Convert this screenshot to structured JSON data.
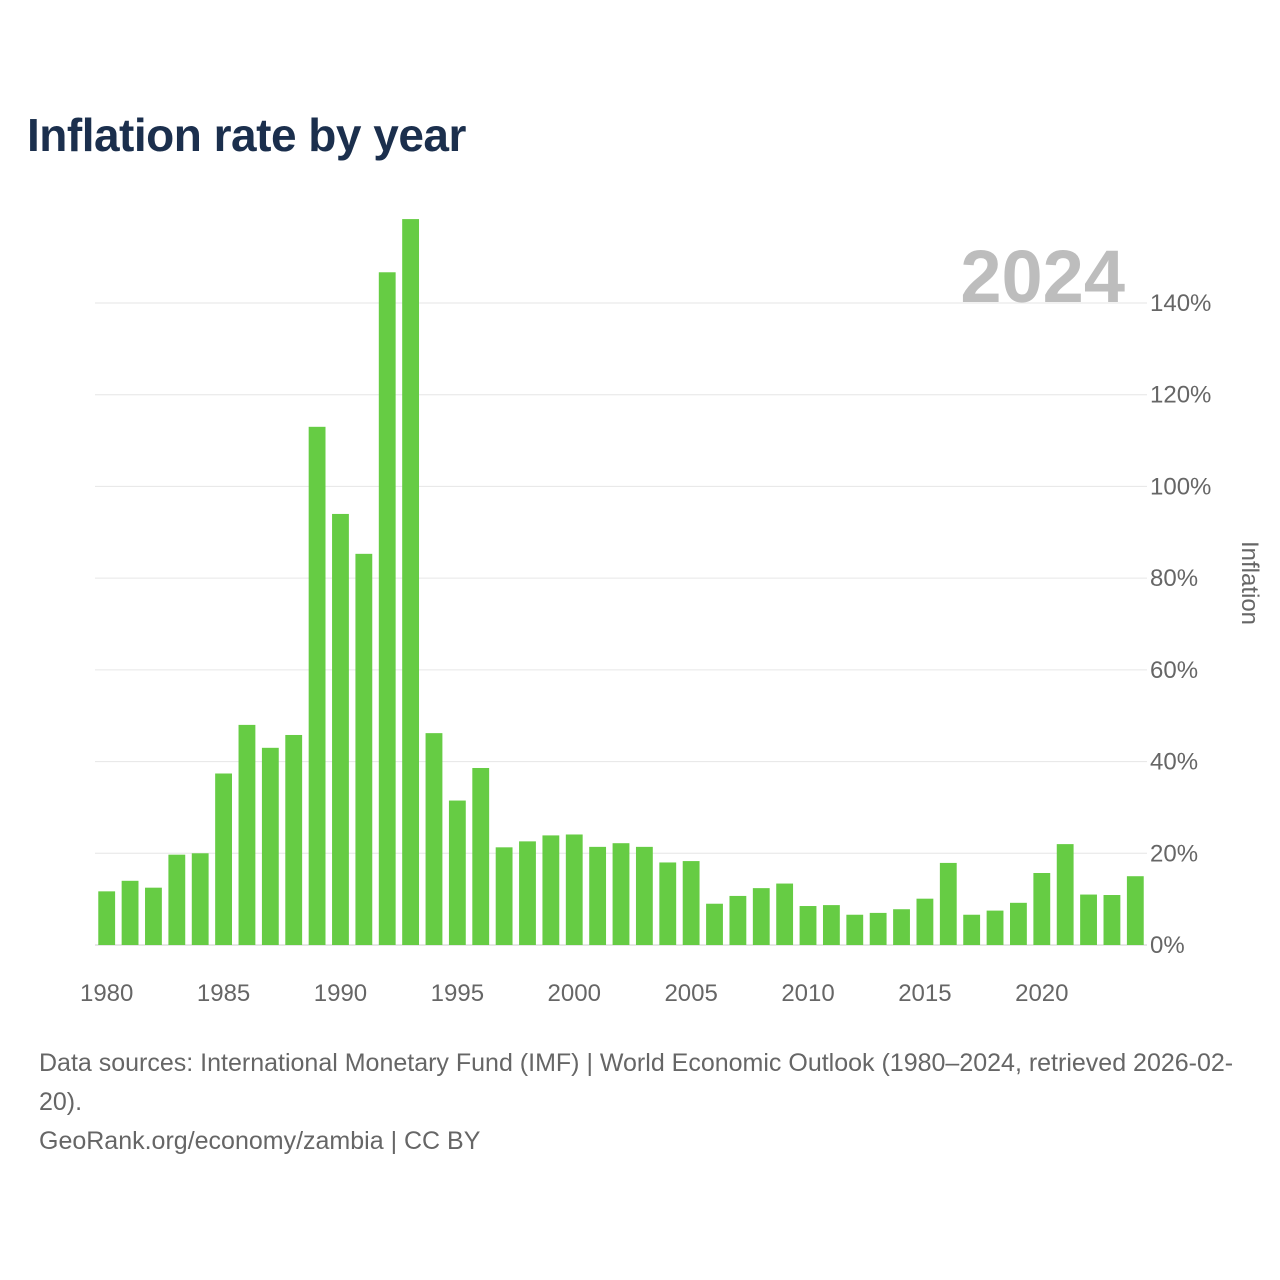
{
  "chart_data": {
    "type": "bar",
    "title": "Inflation rate by year",
    "year_watermark": "2024",
    "ylabel": "Inflation",
    "xlabel": "",
    "ylim": [
      0,
      160
    ],
    "y_ticks": [
      0,
      20,
      40,
      60,
      80,
      100,
      120,
      140
    ],
    "y_tick_labels": [
      "0%",
      "20%",
      "40%",
      "60%",
      "80%",
      "100%",
      "120%",
      "140%"
    ],
    "x_ticks": [
      1980,
      1985,
      1990,
      1995,
      2000,
      2005,
      2010,
      2015,
      2020
    ],
    "x_tick_labels": [
      "1980",
      "1985",
      "1990",
      "1995",
      "2000",
      "2005",
      "2010",
      "2015",
      "2020"
    ],
    "bar_color": "#66cc44",
    "grid_color": "#e6e6e6",
    "categories": [
      1980,
      1981,
      1982,
      1983,
      1984,
      1985,
      1986,
      1987,
      1988,
      1989,
      1990,
      1991,
      1992,
      1993,
      1994,
      1995,
      1996,
      1997,
      1998,
      1999,
      2000,
      2001,
      2002,
      2003,
      2004,
      2005,
      2006,
      2007,
      2008,
      2009,
      2010,
      2011,
      2012,
      2013,
      2014,
      2015,
      2016,
      2017,
      2018,
      2019,
      2020,
      2021,
      2022,
      2023,
      2024
    ],
    "values": [
      11.7,
      14.0,
      12.5,
      19.7,
      20.0,
      37.4,
      48.0,
      43.0,
      45.8,
      113.0,
      94.0,
      85.3,
      146.7,
      158.3,
      46.2,
      31.5,
      38.6,
      21.3,
      22.6,
      23.9,
      24.1,
      21.4,
      22.2,
      21.4,
      18.0,
      18.3,
      9.0,
      10.7,
      12.4,
      13.4,
      8.5,
      8.7,
      6.6,
      7.0,
      7.8,
      10.1,
      17.9,
      6.6,
      7.5,
      9.2,
      15.7,
      22.0,
      11.0,
      10.9,
      15.0
    ]
  },
  "footer": {
    "sources": "Data sources: International Monetary Fund (IMF) | World Economic Outlook (1980–2024, retrieved 2026-02-20).",
    "credit": "GeoRank.org/economy/zambia | CC BY"
  }
}
